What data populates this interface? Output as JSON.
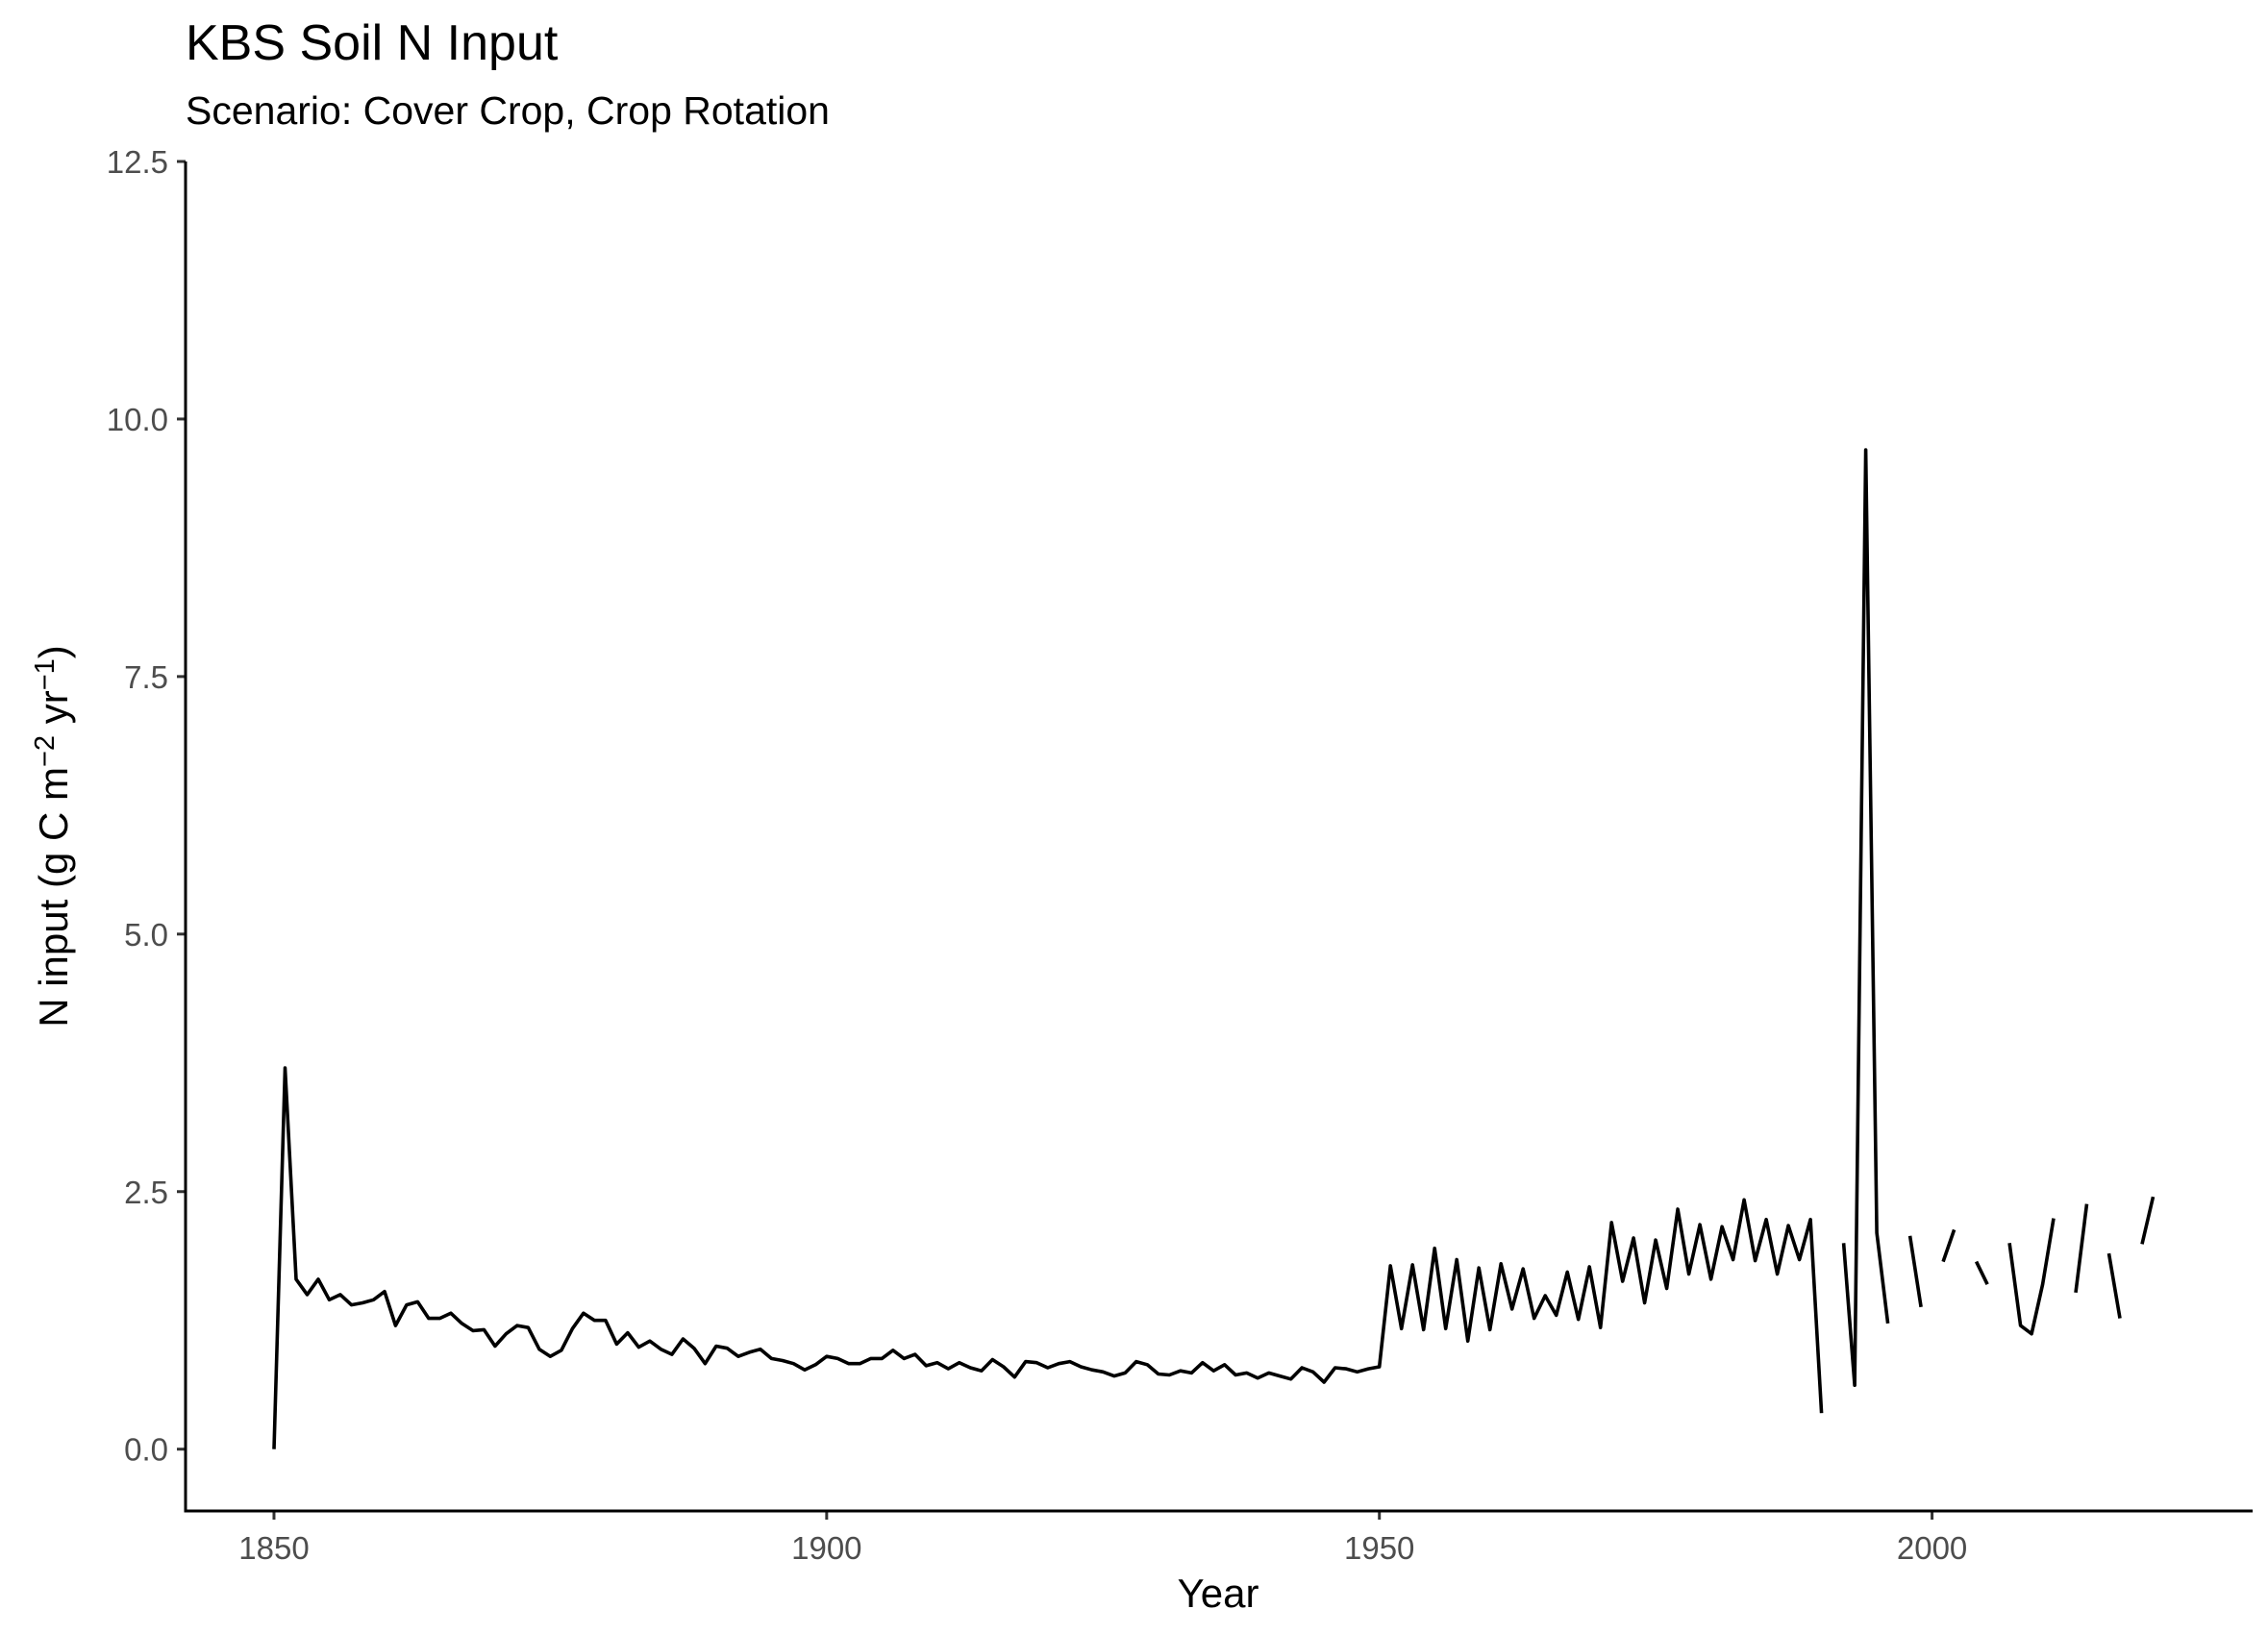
{
  "chart_data": {
    "type": "line",
    "title": "KBS Soil N Input",
    "subtitle": "Scenario: Cover Crop, Crop Rotation",
    "xlabel": "Year",
    "ylabel": "N input (g C m⁻² yr⁻¹)",
    "xlim": [
      1842,
      2029
    ],
    "ylim": [
      -0.6,
      12.5
    ],
    "x_ticks": [
      1850,
      1900,
      1950,
      2000
    ],
    "x_tick_labels": [
      "1850",
      "1900",
      "1950",
      "2000"
    ],
    "y_ticks": [
      0,
      2.5,
      5,
      7.5,
      10,
      12.5
    ],
    "y_tick_labels": [
      "0.0",
      "2.5",
      "5.0",
      "7.5",
      "10.0",
      "12.5"
    ],
    "grid": false,
    "legend": "none",
    "line_color": "#000000",
    "series": [
      {
        "x": [
          1850,
          1851,
          1852,
          1853,
          1854,
          1855,
          1856,
          1857,
          1858,
          1859,
          1860,
          1861,
          1862,
          1863,
          1864,
          1865,
          1866,
          1867,
          1868,
          1869,
          1870,
          1871,
          1872,
          1873,
          1874,
          1875,
          1876,
          1877,
          1878,
          1879,
          1880,
          1881,
          1882,
          1883,
          1884,
          1885,
          1886,
          1887,
          1888,
          1889,
          1890,
          1891,
          1892,
          1893,
          1894,
          1895,
          1896,
          1897,
          1898,
          1899,
          1900,
          1901,
          1902,
          1903,
          1904,
          1905,
          1906,
          1907,
          1908,
          1909,
          1910,
          1911,
          1912,
          1913,
          1914,
          1915,
          1916,
          1917,
          1918,
          1919,
          1920,
          1921,
          1922,
          1923,
          1924,
          1925,
          1926,
          1927,
          1928,
          1929,
          1930,
          1931,
          1932,
          1933,
          1934,
          1935,
          1936,
          1937,
          1938,
          1939,
          1940,
          1941,
          1942,
          1943,
          1944,
          1945,
          1946,
          1947,
          1948,
          1949,
          1950,
          1951,
          1952,
          1953,
          1954,
          1955,
          1956,
          1957,
          1958,
          1959,
          1960,
          1961,
          1962,
          1963,
          1964,
          1965,
          1966,
          1967,
          1968,
          1969,
          1970,
          1971,
          1972,
          1973,
          1974,
          1975,
          1976,
          1977,
          1978,
          1979,
          1980,
          1981,
          1982,
          1983,
          1984,
          1985,
          1986,
          1987,
          1988,
          1989,
          1990,
          1991,
          1992,
          1993,
          1994,
          1995,
          1996,
          1997,
          1998,
          1999,
          2000,
          2001,
          2002,
          2003,
          2004,
          2005,
          2006,
          2007,
          2008,
          2009,
          2010,
          2011,
          2012,
          2013,
          2014,
          2015,
          2016,
          2017,
          2018,
          2019,
          2020
        ],
        "y": [
          0.0,
          3.7,
          1.65,
          1.5,
          1.65,
          1.45,
          1.5,
          1.4,
          1.42,
          1.45,
          1.53,
          1.2,
          1.4,
          1.43,
          1.27,
          1.27,
          1.32,
          1.22,
          1.15,
          1.16,
          1.0,
          1.12,
          1.2,
          1.18,
          0.97,
          0.9,
          0.96,
          1.17,
          1.32,
          1.25,
          1.25,
          1.02,
          1.13,
          0.99,
          1.05,
          0.97,
          0.92,
          1.07,
          0.98,
          0.83,
          1.0,
          0.98,
          0.9,
          0.94,
          0.97,
          0.88,
          0.86,
          0.83,
          0.77,
          0.82,
          0.9,
          0.88,
          0.83,
          0.83,
          0.88,
          0.88,
          0.96,
          0.88,
          0.92,
          0.81,
          0.84,
          0.78,
          0.84,
          0.79,
          0.76,
          0.87,
          0.8,
          0.7,
          0.85,
          0.84,
          0.79,
          0.83,
          0.85,
          0.8,
          0.77,
          0.75,
          0.71,
          0.74,
          0.85,
          0.82,
          0.73,
          0.72,
          0.76,
          0.74,
          0.84,
          0.76,
          0.82,
          0.72,
          0.74,
          0.69,
          0.74,
          0.71,
          0.68,
          0.79,
          0.75,
          0.65,
          0.79,
          0.78,
          0.75,
          0.78,
          0.8,
          1.78,
          1.17,
          1.79,
          1.16,
          1.95,
          1.17,
          1.84,
          1.05,
          1.76,
          1.16,
          1.8,
          1.36,
          1.75,
          1.27,
          1.49,
          1.3,
          1.72,
          1.26,
          1.77,
          1.18,
          2.2,
          1.63,
          2.05,
          1.42,
          2.03,
          1.56,
          2.33,
          1.7,
          2.18,
          1.65,
          2.16,
          1.84,
          2.42,
          1.83,
          2.23,
          1.7,
          2.17,
          1.84,
          2.23,
          0.35,
          null,
          2.0,
          0.62,
          9.7,
          2.1,
          1.22,
          null,
          2.07,
          1.38,
          null,
          1.82,
          2.13,
          null,
          1.82,
          1.6,
          null,
          2.0,
          1.2,
          1.12,
          1.6,
          2.24,
          null,
          1.52,
          2.38,
          null,
          1.9,
          1.27,
          null,
          1.99,
          2.45
        ]
      }
    ]
  }
}
